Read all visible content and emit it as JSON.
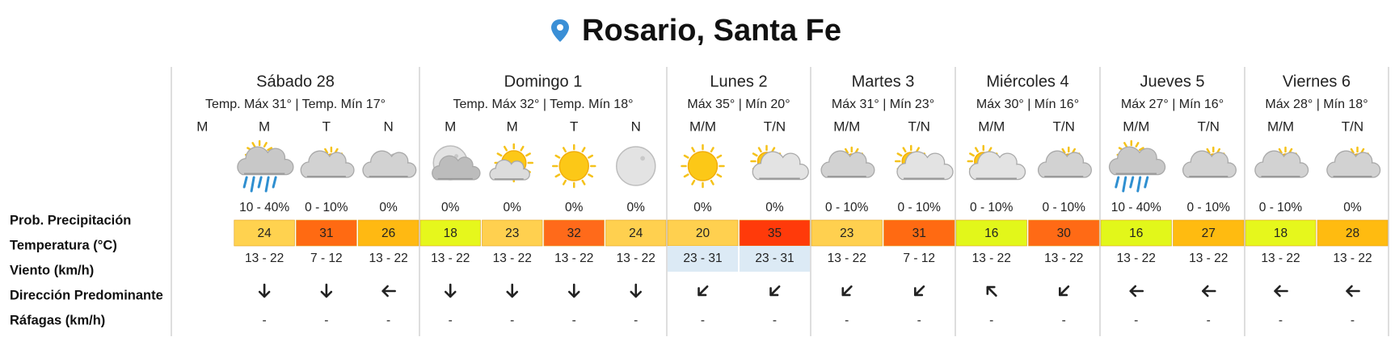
{
  "header": {
    "title": "Rosario, Santa Fe"
  },
  "row_labels": [
    "Prob. Precipitación",
    "Temperatura (°C)",
    "Viento (km/h)",
    "Dirección Predominante",
    "Ráfagas (km/h)"
  ],
  "days": [
    {
      "name": "Sábado 28",
      "temps": "Temp. Máx 31° | Temp. Mín 17°",
      "periods": [
        {
          "label": "M"
        },
        {
          "label": "M",
          "icon": "rain",
          "precip": "10 - 40%",
          "temp": 24,
          "temp_color": "#ffd24f",
          "wind": "13 - 22",
          "arrow": "S",
          "gusts": "-"
        },
        {
          "label": "T",
          "icon": "partly",
          "precip": "0 - 10%",
          "temp": 31,
          "temp_color": "#ff6a12",
          "wind": "7 - 12",
          "arrow": "S",
          "gusts": "-"
        },
        {
          "label": "N",
          "icon": "partly-night",
          "precip": "0%",
          "temp": 26,
          "temp_color": "#ffb912",
          "wind": "13 - 22",
          "arrow": "W",
          "gusts": "-"
        }
      ]
    },
    {
      "name": "Domingo 1",
      "temps": "Temp. Máx 32° | Temp. Mín 18°",
      "periods": [
        {
          "label": "M",
          "icon": "moon-cloud",
          "precip": "0%",
          "temp": 18,
          "temp_color": "#e6f71c",
          "wind": "13 - 22",
          "arrow": "S",
          "gusts": "-"
        },
        {
          "label": "M",
          "icon": "sun-haze",
          "precip": "0%",
          "temp": 23,
          "temp_color": "#ffd04f",
          "wind": "13 - 22",
          "arrow": "S",
          "gusts": "-"
        },
        {
          "label": "T",
          "icon": "sun",
          "precip": "0%",
          "temp": 32,
          "temp_color": "#ff6a1a",
          "wind": "13 - 22",
          "arrow": "S",
          "gusts": "-"
        },
        {
          "label": "N",
          "icon": "moon",
          "precip": "0%",
          "temp": 24,
          "temp_color": "#ffd04f",
          "wind": "13 - 22",
          "arrow": "S",
          "gusts": "-"
        }
      ]
    },
    {
      "name": "Lunes 2",
      "temps": "Máx 35° | Mín 20°",
      "wind_color": "#dceaf5",
      "periods": [
        {
          "label": "M/M",
          "icon": "sun",
          "precip": "0%",
          "temp": 20,
          "temp_color": "#ffd04f",
          "wind": "23 - 31",
          "arrow": "SW",
          "gusts": "-"
        },
        {
          "label": "T/N",
          "icon": "sun-cloud",
          "precip": "0%",
          "temp": 35,
          "temp_color": "#ff3a0a",
          "wind": "23 - 31",
          "arrow": "SW",
          "gusts": "-"
        }
      ]
    },
    {
      "name": "Martes 3",
      "temps": "Máx 31° | Mín 23°",
      "periods": [
        {
          "label": "M/M",
          "icon": "partly",
          "precip": "0 - 10%",
          "temp": 23,
          "temp_color": "#ffd04f",
          "wind": "13 - 22",
          "arrow": "SW",
          "gusts": "-"
        },
        {
          "label": "T/N",
          "icon": "sun-cloud",
          "precip": "0 - 10%",
          "temp": 31,
          "temp_color": "#ff6a12",
          "wind": "7 - 12",
          "arrow": "SW",
          "gusts": "-"
        }
      ]
    },
    {
      "name": "Miércoles 4",
      "temps": "Máx 30° | Mín 16°",
      "periods": [
        {
          "label": "M/M",
          "icon": "sun-cloud",
          "precip": "0 - 10%",
          "temp": 16,
          "temp_color": "#e2f71a",
          "wind": "13 - 22",
          "arrow": "NW",
          "gusts": "-"
        },
        {
          "label": "T/N",
          "icon": "partly",
          "precip": "0 - 10%",
          "temp": 30,
          "temp_color": "#ff6a15",
          "wind": "13 - 22",
          "arrow": "SW",
          "gusts": "-"
        }
      ]
    },
    {
      "name": "Jueves 5",
      "temps": "Máx 27° | Mín 16°",
      "periods": [
        {
          "label": "M/M",
          "icon": "rain",
          "precip": "10 - 40%",
          "temp": 16,
          "temp_color": "#e2f71a",
          "wind": "13 - 22",
          "arrow": "W",
          "gusts": "-"
        },
        {
          "label": "T/N",
          "icon": "partly",
          "precip": "0 - 10%",
          "temp": 27,
          "temp_color": "#ffbb10",
          "wind": "13 - 22",
          "arrow": "W",
          "gusts": "-"
        }
      ]
    },
    {
      "name": "Viernes 6",
      "temps": "Máx 28° | Mín 18°",
      "periods": [
        {
          "label": "M/M",
          "icon": "partly",
          "precip": "0 - 10%",
          "temp": 18,
          "temp_color": "#e6f71c",
          "wind": "13 - 22",
          "arrow": "W",
          "gusts": "-"
        },
        {
          "label": "T/N",
          "icon": "partly",
          "precip": "0%",
          "temp": 28,
          "temp_color": "#ffbb10",
          "wind": "13 - 22",
          "arrow": "W",
          "gusts": "-"
        }
      ]
    }
  ]
}
